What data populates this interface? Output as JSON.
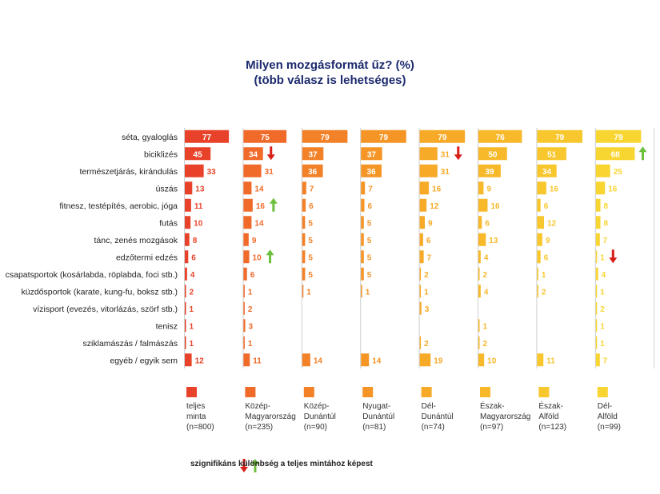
{
  "title": "Milyen mozgásformát űz? (%)",
  "subtitle": "(több válasz is lehetséges)",
  "note": "szignifikáns különbség a teljes mintához képest",
  "chart_data": {
    "type": "bar",
    "categories": [
      "séta, gyaloglás",
      "biciklizés",
      "természetjárás, kirándulás",
      "úszás",
      "fitnesz, testépítés, aerobic, jóga",
      "futás",
      "tánc, zenés mozgások",
      "edzőtermi edzés",
      "csapatsportok (kosárlabda, röplabda, foci stb.)",
      "küzdősportok (karate, kung-fu, boksz stb.)",
      "vízisport (evezés, vitorlázás, szörf stb.)",
      "tenisz",
      "sziklamászás / falmászás",
      "egyéb / egyik sem"
    ],
    "series": [
      {
        "name": "teljes minta",
        "n": "(n=800)",
        "color": "#e8432a",
        "values": [
          77,
          45,
          33,
          13,
          11,
          10,
          8,
          6,
          4,
          2,
          1,
          1,
          1,
          12
        ]
      },
      {
        "name": "Közép-Magyarország",
        "n": "(n=235)",
        "color": "#f06a2a",
        "values": [
          75,
          34,
          31,
          14,
          16,
          14,
          9,
          10,
          6,
          1,
          2,
          3,
          1,
          11
        ]
      },
      {
        "name": "Közép-Dunántúl",
        "n": "(n=90)",
        "color": "#f28128",
        "values": [
          79,
          37,
          36,
          7,
          6,
          5,
          5,
          5,
          5,
          1,
          null,
          null,
          null,
          14
        ]
      },
      {
        "name": "Nyugat-Dunántúl",
        "n": "(n=81)",
        "color": "#f49526",
        "values": [
          79,
          37,
          36,
          7,
          6,
          5,
          5,
          5,
          5,
          1,
          null,
          null,
          null,
          14
        ]
      },
      {
        "name": "Dél-Dunántúl",
        "n": "(n=74)",
        "color": "#f6aa27",
        "values": [
          79,
          31,
          31,
          16,
          12,
          9,
          6,
          7,
          2,
          1,
          3,
          null,
          2,
          19
        ]
      },
      {
        "name": "Észak-Magyarország",
        "n": "(n=97)",
        "color": "#f7b92a",
        "values": [
          76,
          50,
          39,
          9,
          16,
          6,
          13,
          4,
          2,
          4,
          null,
          1,
          2,
          10
        ]
      },
      {
        "name": "Észak-Alföld",
        "n": "(n=123)",
        "color": "#f8c72d",
        "values": [
          79,
          51,
          34,
          16,
          6,
          12,
          9,
          6,
          1,
          2,
          null,
          null,
          null,
          11
        ]
      },
      {
        "name": "Dél-Alföld",
        "n": "(n=99)",
        "color": "#f9d532",
        "values": [
          79,
          68,
          25,
          16,
          8,
          8,
          7,
          1,
          4,
          1,
          2,
          1,
          1,
          7
        ]
      }
    ],
    "significance": [
      {
        "series": 1,
        "category": 1,
        "direction": "down"
      },
      {
        "series": 4,
        "category": 1,
        "direction": "down"
      },
      {
        "series": 7,
        "category": 1,
        "direction": "up"
      },
      {
        "series": 1,
        "category": 4,
        "direction": "up"
      },
      {
        "series": 1,
        "category": 7,
        "direction": "up"
      },
      {
        "series": 7,
        "category": 7,
        "direction": "down"
      }
    ],
    "colors": {
      "up": "#6cbf3c",
      "down": "#d91e18",
      "grid": "#cfcfcf"
    },
    "xlim": [
      0,
      100
    ],
    "grid": true,
    "legend_position": "bottom"
  }
}
